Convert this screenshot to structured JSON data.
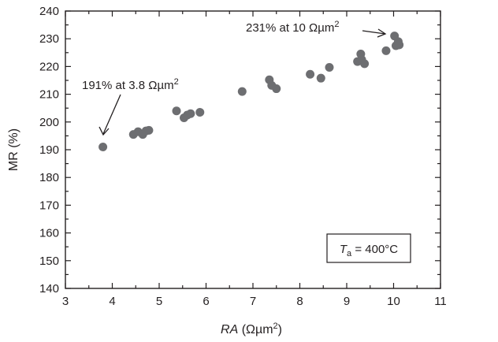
{
  "chart_data": {
    "type": "scatter",
    "xlabel_italic": "RA",
    "xlabel_unit_open": " (Ωµm",
    "xlabel_unit_sup": "2",
    "xlabel_unit_close": ")",
    "ylabel": "MR (%)",
    "xlim": [
      3,
      11
    ],
    "ylim": [
      140,
      240
    ],
    "x_ticks": [
      3,
      4,
      5,
      6,
      7,
      8,
      9,
      10,
      11
    ],
    "y_ticks": [
      140,
      150,
      160,
      170,
      180,
      190,
      200,
      210,
      220,
      230,
      240
    ],
    "y_minor_step": 5,
    "x_minor_step": 0.5,
    "grid": false,
    "points": [
      {
        "x": 3.8,
        "y": 191
      },
      {
        "x": 4.45,
        "y": 195.5
      },
      {
        "x": 4.55,
        "y": 196.5
      },
      {
        "x": 4.65,
        "y": 195.5
      },
      {
        "x": 4.72,
        "y": 196.8
      },
      {
        "x": 4.78,
        "y": 197
      },
      {
        "x": 5.37,
        "y": 204
      },
      {
        "x": 5.53,
        "y": 201.5
      },
      {
        "x": 5.6,
        "y": 202.5
      },
      {
        "x": 5.67,
        "y": 203
      },
      {
        "x": 5.87,
        "y": 203.5
      },
      {
        "x": 6.77,
        "y": 211
      },
      {
        "x": 7.35,
        "y": 215.2
      },
      {
        "x": 7.4,
        "y": 213.2
      },
      {
        "x": 7.5,
        "y": 212
      },
      {
        "x": 8.22,
        "y": 217.2
      },
      {
        "x": 8.45,
        "y": 215.8
      },
      {
        "x": 8.63,
        "y": 219.7
      },
      {
        "x": 9.23,
        "y": 221.8
      },
      {
        "x": 9.3,
        "y": 224.5
      },
      {
        "x": 9.32,
        "y": 222.5
      },
      {
        "x": 9.38,
        "y": 221
      },
      {
        "x": 9.84,
        "y": 225.7
      },
      {
        "x": 10.02,
        "y": 231
      },
      {
        "x": 10.05,
        "y": 227.5
      },
      {
        "x": 10.1,
        "y": 229
      },
      {
        "x": 10.12,
        "y": 227.8
      }
    ],
    "annotations": [
      {
        "text": "191% at 3.8 Ωµm",
        "sup": "2",
        "points_to": {
          "x": 3.8,
          "y": 191
        }
      },
      {
        "text": "231% at 10 Ωµm",
        "sup": "2",
        "points_to": {
          "x": 10.02,
          "y": 231
        }
      }
    ],
    "legend_box": {
      "label_italic": "T",
      "label_sub": "a",
      "label_rest": " = 400°C",
      "placement": "bottom-right"
    },
    "colors": {
      "marker": "#6d6e71",
      "axes": "#231f20"
    }
  }
}
